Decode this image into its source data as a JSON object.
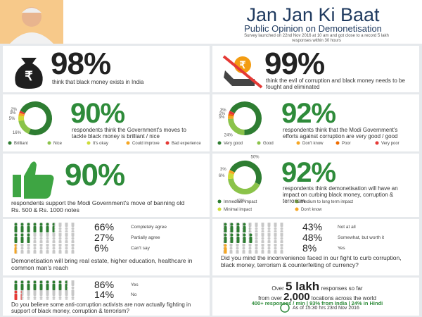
{
  "header": {
    "title": "Jan Jan Ki Baat",
    "subtitle": "Public Opinion on Demonetisation",
    "note": "Survey launched on 22nd Nov 2016 at 10 am and got close to a record 5 lakh responses within 30 hours"
  },
  "stats": [
    {
      "value": "98%",
      "text": "think that black money exists in India"
    },
    {
      "value": "99%",
      "text": "think the evil of corruption and black money needs to be fought and eliminated"
    }
  ],
  "donuts": [
    {
      "headline": "90%",
      "text": "respondents think the Government's moves to tackle black money is brilliant / nice",
      "segments": [
        {
          "name": "Brilliant",
          "color": "#2e7d32",
          "value": 74
        },
        {
          "name": "Nice",
          "color": "#8bc34a",
          "value": 16,
          "label": "16%"
        },
        {
          "name": "It's okay",
          "color": "#cddc39",
          "value": 5,
          "label": "5%"
        },
        {
          "name": "Could improve",
          "color": "#f5a623",
          "value": 3,
          "label": "3%"
        },
        {
          "name": "Bad experience",
          "color": "#e53935",
          "value": 2,
          "label": "2%"
        }
      ]
    },
    {
      "headline": "92%",
      "text": "respondents think that the Modi Government's efforts against corruption are very good / good",
      "segments": [
        {
          "name": "Very good",
          "color": "#2e7d32",
          "value": 68
        },
        {
          "name": "Good",
          "color": "#8bc34a",
          "value": 24,
          "label": "24%"
        },
        {
          "name": "Don't know",
          "color": "#f5a623",
          "value": 3,
          "label": "3%"
        },
        {
          "name": "Poor",
          "color": "#ef6c00",
          "value": 2,
          "label": "2%"
        },
        {
          "name": "Very poor",
          "color": "#e53935",
          "value": 3,
          "label": "3%"
        }
      ]
    },
    {
      "headline": "92%",
      "text": "respondents think demonetisation will have an impact on curbing black money, corruption & terrorism",
      "segments": [
        {
          "name": "Immediate impact",
          "color": "#2e7d32",
          "value": 50,
          "label": "50%"
        },
        {
          "name": "Medium to long term impact",
          "color": "#8bc34a",
          "value": 42,
          "label": "42%"
        },
        {
          "name": "Minimal impact",
          "color": "#cddc39",
          "value": 6,
          "label": "6%"
        },
        {
          "name": "Don't know",
          "color": "#f5a623",
          "value": 3,
          "label": "3%"
        }
      ]
    }
  ],
  "support": {
    "value": "90%",
    "text": "respondents support the Modi Government's move of banning old Rs. 500 & Rs. 1000 notes"
  },
  "polls": [
    {
      "question": "Demonetisation will bring real estate, higher education, healthcare in common man's reach",
      "rows": [
        {
          "value": 66,
          "label": "66%",
          "name": "Completely agree",
          "color": "#2e7d32"
        },
        {
          "value": 27,
          "label": "27%",
          "name": "Partially agree",
          "color": "#2e7d32"
        },
        {
          "value": 6,
          "label": "6%",
          "name": "Can't say",
          "color": "#f5a623"
        }
      ]
    },
    {
      "question": "Did you mind the inconvenience faced in our fight to curb corruption, black money, terrorism & counterfeiting of currency?",
      "rows": [
        {
          "value": 43,
          "label": "43%",
          "name": "Not at all",
          "color": "#2e7d32"
        },
        {
          "value": 48,
          "label": "48%",
          "name": "Somewhat, but worth it",
          "color": "#2e7d32"
        },
        {
          "value": 8,
          "label": "8%",
          "name": "Yes",
          "color": "#f5a623"
        }
      ]
    },
    {
      "question": "Do you believe some anti-corruption activists are now actually fighting in support of black money, corruption & terrorism?",
      "rows": [
        {
          "value": 86,
          "label": "86%",
          "name": "Yes",
          "color": "#2e7d32"
        },
        {
          "value": 14,
          "label": "14%",
          "name": "No",
          "color": "#e53935"
        }
      ]
    }
  ],
  "summary": {
    "line1_pre": "Over",
    "line1_big": "5 lakh",
    "line1_post": "responses so far",
    "line2_pre": "from over",
    "line2_big": "2,000",
    "line2_post": "locations across the world",
    "line3": "400+ responses / min | 93% from India | 24% in Hindi",
    "footer": "As of 15:30 hrs 23rd Nov 2016"
  }
}
